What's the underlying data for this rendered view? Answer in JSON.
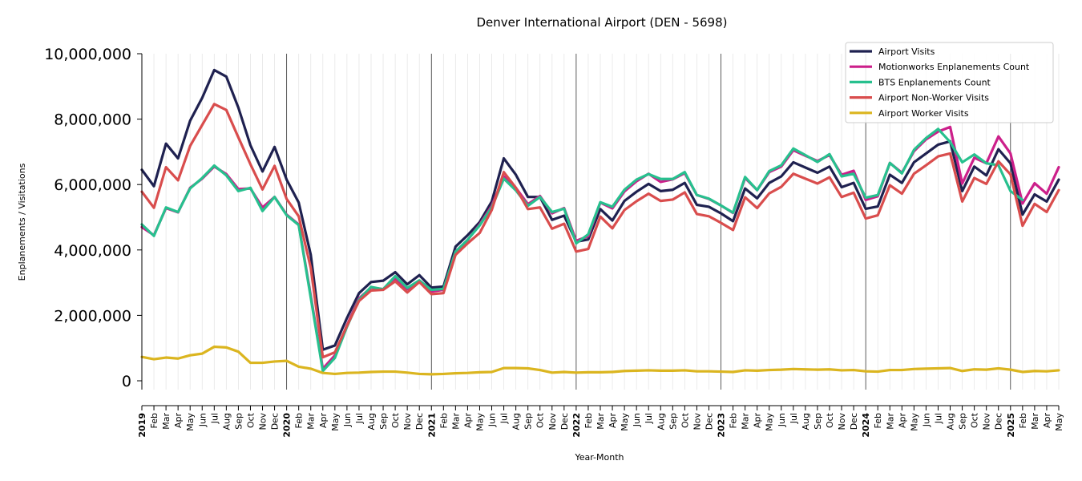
{
  "chart_data": {
    "type": "line",
    "title": "Denver International Airport (DEN - 5698)",
    "xlabel": "Year-Month",
    "ylabel": "Enplanements / Visitations",
    "ylim": [
      0,
      10000000
    ],
    "yticks": [
      0,
      2000000,
      4000000,
      6000000,
      8000000,
      10000000
    ],
    "ytick_labels": [
      "0",
      "2,000,000",
      "4,000,000",
      "6,000,000",
      "8,000,000",
      "10,000,000"
    ],
    "legend_position": "top-right",
    "grid": "vertical lines at each month, darker lines at year boundaries",
    "x": [
      "2019-01",
      "2019-02",
      "2019-03",
      "2019-04",
      "2019-05",
      "2019-06",
      "2019-07",
      "2019-08",
      "2019-09",
      "2019-10",
      "2019-11",
      "2019-12",
      "2020-01",
      "2020-02",
      "2020-03",
      "2020-04",
      "2020-05",
      "2020-06",
      "2020-07",
      "2020-08",
      "2020-09",
      "2020-10",
      "2020-11",
      "2020-12",
      "2021-01",
      "2021-02",
      "2021-03",
      "2021-04",
      "2021-05",
      "2021-06",
      "2021-07",
      "2021-08",
      "2021-09",
      "2021-10",
      "2021-11",
      "2021-12",
      "2022-01",
      "2022-02",
      "2022-03",
      "2022-04",
      "2022-05",
      "2022-06",
      "2022-07",
      "2022-08",
      "2022-09",
      "2022-10",
      "2022-11",
      "2022-12",
      "2023-01",
      "2023-02",
      "2023-03",
      "2023-04",
      "2023-05",
      "2023-06",
      "2023-07",
      "2023-08",
      "2023-09",
      "2023-10",
      "2023-11",
      "2023-12",
      "2024-01",
      "2024-02",
      "2024-03",
      "2024-04",
      "2024-05",
      "2024-06",
      "2024-07",
      "2024-08",
      "2024-09",
      "2024-10",
      "2024-11",
      "2024-12",
      "2025-01",
      "2025-02",
      "2025-03",
      "2025-04",
      "2025-05"
    ],
    "x_tick_labels": [
      "2019",
      "Feb",
      "Mar",
      "Apr",
      "May",
      "Jun",
      "Jul",
      "Aug",
      "Sep",
      "Oct",
      "Nov",
      "Dec",
      "2020",
      "Feb",
      "Mar",
      "Apr",
      "May",
      "Jun",
      "Jul",
      "Aug",
      "Sep",
      "Oct",
      "Nov",
      "Dec",
      "2021",
      "Feb",
      "Mar",
      "Apr",
      "May",
      "Jun",
      "Jul",
      "Aug",
      "Sep",
      "Oct",
      "Nov",
      "Dec",
      "2022",
      "Feb",
      "Mar",
      "Apr",
      "May",
      "Jun",
      "Jul",
      "Aug",
      "Sep",
      "Oct",
      "Nov",
      "Dec",
      "2023",
      "Feb",
      "Mar",
      "Apr",
      "May",
      "Jun",
      "Jul",
      "Aug",
      "Sep",
      "Oct",
      "Nov",
      "Dec",
      "2024",
      "Feb",
      "Mar",
      "Apr",
      "May",
      "Jun",
      "Jul",
      "Aug",
      "Sep",
      "Oct",
      "Nov",
      "Dec",
      "2025",
      "Feb",
      "Mar",
      "Apr",
      "May"
    ],
    "series": [
      {
        "name": "Airport Visits",
        "color": "#1f2150",
        "values": [
          6450000,
          5950000,
          7250000,
          6800000,
          7950000,
          8650000,
          9500000,
          9300000,
          8350000,
          7200000,
          6400000,
          7150000,
          6150000,
          5450000,
          3850000,
          950000,
          1080000,
          1920000,
          2680000,
          3020000,
          3060000,
          3320000,
          2950000,
          3230000,
          2850000,
          2880000,
          4100000,
          4450000,
          4850000,
          5480000,
          6800000,
          6300000,
          5620000,
          5620000,
          4920000,
          5050000,
          4250000,
          4320000,
          5250000,
          4900000,
          5500000,
          5780000,
          6020000,
          5800000,
          5840000,
          6050000,
          5380000,
          5320000,
          5120000,
          4880000,
          5880000,
          5580000,
          6050000,
          6250000,
          6680000,
          6520000,
          6360000,
          6550000,
          5920000,
          6050000,
          5260000,
          5330000,
          6300000,
          6050000,
          6680000,
          6950000,
          7220000,
          7320000,
          5800000,
          6550000,
          6280000,
          7080000,
          6650000,
          5080000,
          5700000,
          5480000,
          6150000
        ]
      },
      {
        "name": "Motionworks Enplanements Count",
        "color": "#cc1f8a",
        "values": [
          4700000,
          4450000,
          5280000,
          5150000,
          5900000,
          6180000,
          6550000,
          6320000,
          5860000,
          5880000,
          5300000,
          5620000,
          5080000,
          4780000,
          2600000,
          370000,
          780000,
          1700000,
          2520000,
          2850000,
          2800000,
          3120000,
          2800000,
          3060000,
          2730000,
          2780000,
          3950000,
          4300000,
          4780000,
          5350000,
          6250000,
          5900000,
          5400000,
          5650000,
          5120000,
          5280000,
          4280000,
          4420000,
          5450000,
          5270000,
          5790000,
          6100000,
          6330000,
          6080000,
          6160000,
          6350000,
          5680000,
          5560000,
          5360000,
          5130000,
          6200000,
          5830000,
          6380000,
          6550000,
          7050000,
          6880000,
          6720000,
          6900000,
          6300000,
          6420000,
          5530000,
          5640000,
          6660000,
          6360000,
          7020000,
          7380000,
          7620000,
          7760000,
          6030000,
          6820000,
          6650000,
          7470000,
          6950000,
          5420000,
          6040000,
          5720000,
          6530000
        ]
      },
      {
        "name": "BTS Enplanements Count",
        "color": "#27c08e",
        "values": [
          4780000,
          4430000,
          5300000,
          5160000,
          5880000,
          6200000,
          6580000,
          6280000,
          5800000,
          5900000,
          5190000,
          5620000,
          5060000,
          4760000,
          2540000,
          300000,
          700000,
          1650000,
          2480000,
          2870000,
          2800000,
          3200000,
          2840000,
          3070000,
          2780000,
          2810000,
          3950000,
          4310000,
          4750000,
          5300000,
          6180000,
          5820000,
          5350000,
          5620000,
          5160000,
          5260000,
          4200000,
          4480000,
          5460000,
          5320000,
          5840000,
          6150000,
          6320000,
          6170000,
          6170000,
          6380000,
          5680000,
          5570000,
          5360000,
          5140000,
          6230000,
          5830000,
          6410000,
          6590000,
          7100000,
          6900000,
          6690000,
          6930000,
          6250000,
          6330000,
          5600000,
          5680000,
          6660000,
          6340000,
          7060000,
          7420000,
          7700000,
          7300000,
          6680000,
          6920000,
          6650000,
          6590000,
          5800000,
          5530000,
          null,
          null,
          null
        ]
      },
      {
        "name": "Airport Non-Worker Visits",
        "color": "#d94d4d",
        "values": [
          5780000,
          5290000,
          6530000,
          6130000,
          7180000,
          7820000,
          8460000,
          8280000,
          7440000,
          6620000,
          5850000,
          6570000,
          5560000,
          5030000,
          3450000,
          720000,
          870000,
          1680000,
          2440000,
          2760000,
          2780000,
          3040000,
          2700000,
          3020000,
          2650000,
          2680000,
          3850000,
          4200000,
          4520000,
          5220000,
          6380000,
          5900000,
          5250000,
          5300000,
          4650000,
          4800000,
          3950000,
          4030000,
          5020000,
          4660000,
          5220000,
          5490000,
          5720000,
          5500000,
          5540000,
          5760000,
          5100000,
          5030000,
          4830000,
          4610000,
          5610000,
          5280000,
          5730000,
          5930000,
          6330000,
          6180000,
          6030000,
          6220000,
          5620000,
          5750000,
          4960000,
          5060000,
          5980000,
          5720000,
          6330000,
          6590000,
          6860000,
          6950000,
          5480000,
          6200000,
          6020000,
          6710000,
          6310000,
          4740000,
          5410000,
          5160000,
          5830000
        ]
      },
      {
        "name": "Airport Worker Visits",
        "color": "#dbb51f",
        "values": [
          730000,
          660000,
          710000,
          680000,
          780000,
          830000,
          1040000,
          1020000,
          890000,
          550000,
          550000,
          590000,
          610000,
          430000,
          370000,
          240000,
          210000,
          240000,
          250000,
          270000,
          280000,
          280000,
          250000,
          210000,
          200000,
          210000,
          230000,
          240000,
          260000,
          270000,
          390000,
          390000,
          380000,
          330000,
          250000,
          270000,
          250000,
          260000,
          260000,
          270000,
          300000,
          310000,
          320000,
          310000,
          310000,
          320000,
          290000,
          290000,
          280000,
          270000,
          320000,
          310000,
          330000,
          340000,
          360000,
          350000,
          340000,
          350000,
          320000,
          330000,
          290000,
          280000,
          330000,
          330000,
          360000,
          370000,
          380000,
          390000,
          300000,
          350000,
          340000,
          380000,
          340000,
          270000,
          300000,
          290000,
          320000
        ]
      }
    ]
  }
}
